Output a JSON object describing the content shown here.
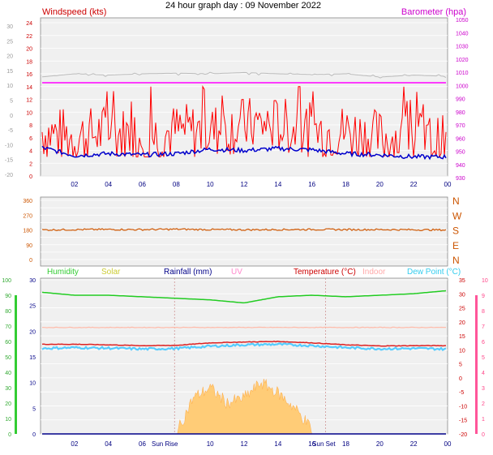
{
  "title": "24 hour graph day : 09 November 2022",
  "chart_data": [
    {
      "type": "line",
      "title": "",
      "labels": {
        "left": "Windspeed (kts)",
        "right": "Barometer (hpa)"
      },
      "x_ticks": [
        "02",
        "04",
        "06",
        "08",
        "10",
        "12",
        "14",
        "16",
        "18",
        "20",
        "22",
        "00"
      ],
      "y_left_outer_ticks": [
        "30",
        "25",
        "20",
        "15",
        "10",
        "5",
        "0",
        "-5",
        "-10",
        "-15",
        "-20"
      ],
      "y_left_inner_ticks": [
        "24",
        "22",
        "20",
        "18",
        "16",
        "14",
        "12",
        "10",
        "8",
        "6",
        "4",
        "2",
        "0"
      ],
      "y_right_ticks": [
        "1050",
        "1040",
        "1030",
        "1020",
        "1010",
        "1000",
        "990",
        "980",
        "970",
        "960",
        "950",
        "940",
        "930"
      ],
      "ylim_wind": [
        0,
        24
      ],
      "ylim_baro": [
        930,
        1050
      ],
      "series": [
        {
          "name": "Windspeed (kts)",
          "color": "#ff0000",
          "x": [
            0,
            2,
            4,
            6,
            8,
            10,
            12,
            14,
            16,
            18,
            20,
            22,
            24
          ],
          "values": [
            7,
            6,
            7,
            6,
            7,
            7,
            8,
            8,
            7,
            7,
            6,
            6,
            5
          ]
        },
        {
          "name": "Barometer (hpa)",
          "color": "#ff00ff",
          "x": [
            0,
            2,
            4,
            6,
            8,
            10,
            12,
            14,
            16,
            18,
            20,
            22,
            24
          ],
          "values": [
            1002,
            1002,
            1002,
            1002,
            1002,
            1002,
            1002,
            1002,
            1002,
            1002,
            1002,
            1002,
            1002
          ]
        },
        {
          "name": "",
          "color": "#0000cc",
          "x": [
            0,
            2,
            4,
            6,
            8,
            10,
            12,
            14,
            16,
            18,
            20,
            22,
            24
          ],
          "values": [
            4.5,
            3.2,
            3.5,
            3.3,
            3.5,
            4.2,
            4.0,
            4.3,
            4.1,
            3.5,
            3.3,
            3.0,
            3.0
          ]
        },
        {
          "name": "",
          "color": "#bbbbbb",
          "x": [
            0,
            2,
            4,
            6,
            8,
            10,
            12,
            14,
            16,
            18,
            20,
            22,
            24
          ],
          "values": [
            15.5,
            16.0,
            15.8,
            16.0,
            16.1,
            16.0,
            16.2,
            16.0,
            15.9,
            16.0,
            15.5,
            15.8,
            15.6
          ]
        }
      ]
    },
    {
      "type": "line",
      "title": "",
      "y_left_ticks": [
        "360",
        "270",
        "180",
        "90",
        "0"
      ],
      "y_right_labels": [
        "N",
        "W",
        "S",
        "E",
        "N"
      ],
      "ylim": [
        0,
        360
      ],
      "series": [
        {
          "name": "",
          "color": "#d06010",
          "x": [
            0,
            2,
            4,
            6,
            8,
            10,
            12,
            14,
            16,
            18,
            20,
            22,
            24
          ],
          "values": [
            180,
            182,
            183,
            182,
            184,
            182,
            181,
            182,
            183,
            182,
            182,
            181,
            180
          ]
        }
      ]
    },
    {
      "type": "line",
      "title": "",
      "legend": [
        "Humidity",
        "Solar",
        "Rainfall (mm)",
        "UV",
        "Temperature (°C)",
        "Indoor",
        "Dew Point (°C)"
      ],
      "x_ticks": [
        "02",
        "04",
        "06",
        "08",
        "10",
        "12",
        "14",
        "16",
        "18",
        "20",
        "22",
        "00"
      ],
      "sun_labels": [
        "Sun Rise",
        "Sun Set"
      ],
      "y_hum_ticks": [
        "100",
        "90",
        "80",
        "70",
        "60",
        "50",
        "40",
        "30",
        "20",
        "10",
        "0"
      ],
      "y_rain_ticks": [
        "30",
        "25",
        "20",
        "15",
        "10",
        "5",
        "0"
      ],
      "y_temp_ticks": [
        "35",
        "30",
        "25",
        "20",
        "15",
        "10",
        "5",
        "0",
        "-5",
        "-10",
        "-15",
        "-20"
      ],
      "y_uv_ticks": [
        "10",
        "9",
        "8",
        "7",
        "6",
        "5",
        "4",
        "3",
        "2",
        "1",
        "0"
      ],
      "ylim_humidity": [
        0,
        100
      ],
      "ylim_temperature": [
        -20,
        35
      ],
      "series": [
        {
          "name": "Humidity",
          "color": "#22cc22",
          "x": [
            0,
            2,
            4,
            6,
            8,
            10,
            12,
            14,
            16,
            18,
            20,
            22,
            24
          ],
          "values": [
            92,
            90,
            90,
            89,
            88,
            87,
            85,
            89,
            90,
            89,
            90,
            91,
            93
          ]
        },
        {
          "name": "Temperature (°C)",
          "color": "#dd2222",
          "x": [
            0,
            2,
            4,
            6,
            8,
            10,
            12,
            14,
            16,
            18,
            20,
            22,
            24
          ],
          "values": [
            12.0,
            12.0,
            11.8,
            11.5,
            11.6,
            12.5,
            12.8,
            13.0,
            12.5,
            11.8,
            11.4,
            11.5,
            11.5
          ]
        },
        {
          "name": "Dew Point (°C)",
          "color": "#55ccff",
          "x": [
            0,
            2,
            4,
            6,
            8,
            10,
            12,
            14,
            16,
            18,
            20,
            22,
            24
          ],
          "values": [
            10.5,
            10.8,
            10.6,
            10.3,
            10.5,
            11.3,
            11.8,
            12.0,
            11.5,
            10.8,
            10.4,
            10.5,
            10.3
          ]
        },
        {
          "name": "Indoor",
          "color": "#ffbbaa",
          "x": [
            0,
            2,
            4,
            6,
            8,
            10,
            12,
            14,
            16,
            18,
            20,
            22,
            24
          ],
          "values": [
            18,
            18,
            18,
            18,
            18,
            18,
            18,
            18,
            18,
            18,
            18,
            18,
            18
          ]
        },
        {
          "name": "Solar",
          "color": "#ffbb55",
          "x": [
            8,
            9,
            10,
            11,
            12,
            13,
            14,
            15,
            16
          ],
          "values": [
            0,
            7,
            9,
            6,
            7,
            10,
            8,
            5,
            1
          ]
        },
        {
          "name": "Rainfall (mm)",
          "color": "#000088",
          "x": [
            0,
            24
          ],
          "values": [
            0,
            0
          ]
        }
      ]
    }
  ],
  "colors": {
    "bg": "#ffffff",
    "plot": "#f0f0f0",
    "grid": "#ffffff"
  }
}
